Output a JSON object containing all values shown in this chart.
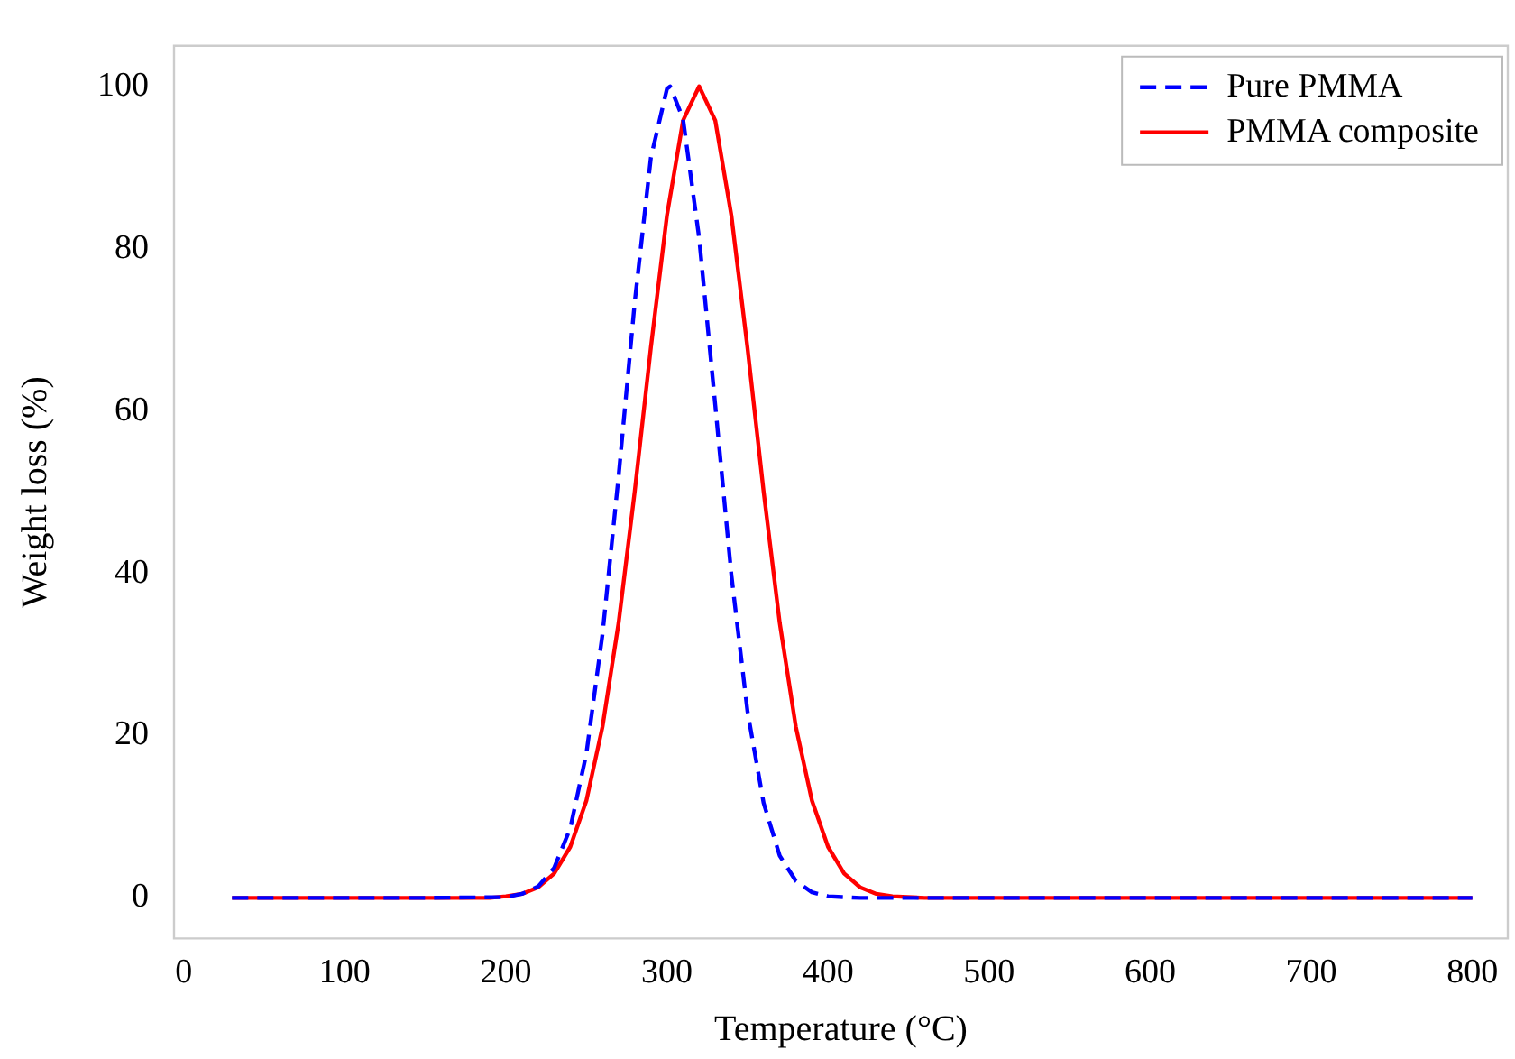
{
  "chart_data": {
    "type": "line",
    "xlabel": "Temperature (°C)",
    "ylabel": "Weight loss (%)",
    "xlim": [
      -6,
      822
    ],
    "ylim": [
      -5,
      105
    ],
    "xticks": [
      0,
      100,
      200,
      300,
      400,
      500,
      600,
      700,
      800
    ],
    "yticks": [
      0,
      20,
      40,
      60,
      80,
      100
    ],
    "grid": false,
    "legend": "top right",
    "marker": "none",
    "series": [
      {
        "name": "Pure PMMA",
        "color": "#0000ff",
        "line_style": "dashed",
        "x": [
          30,
          150,
          200,
          210,
          220,
          230,
          240,
          250,
          260,
          270,
          280,
          290,
          300,
          302,
          310,
          320,
          330,
          340,
          350,
          360,
          370,
          380,
          390,
          400,
          420,
          500,
          800
        ],
        "values": [
          0,
          0,
          0.1,
          0.5,
          1.4,
          3.7,
          8.6,
          17.8,
          32.5,
          52.0,
          73.4,
          91.2,
          99.7,
          100,
          96.0,
          81.3,
          60.7,
          39.8,
          23.0,
          11.7,
          5.2,
          2.1,
          0.7,
          0.2,
          0,
          0,
          0
        ]
      },
      {
        "name": "PMMA composite",
        "color": "#ff0000",
        "line_style": "solid",
        "x": [
          30,
          150,
          190,
          200,
          210,
          220,
          230,
          240,
          250,
          260,
          270,
          280,
          290,
          300,
          310,
          320,
          330,
          340,
          350,
          360,
          370,
          380,
          390,
          400,
          410,
          420,
          430,
          440,
          460,
          500,
          800
        ],
        "values": [
          0,
          0,
          0,
          0.2,
          0.5,
          1.3,
          3.0,
          6.3,
          12.0,
          21.1,
          33.9,
          50.1,
          67.8,
          84.1,
          95.8,
          100,
          95.8,
          84.1,
          67.8,
          50.1,
          33.9,
          21.1,
          12.0,
          6.3,
          3.0,
          1.3,
          0.5,
          0.2,
          0,
          0,
          0
        ]
      }
    ]
  }
}
